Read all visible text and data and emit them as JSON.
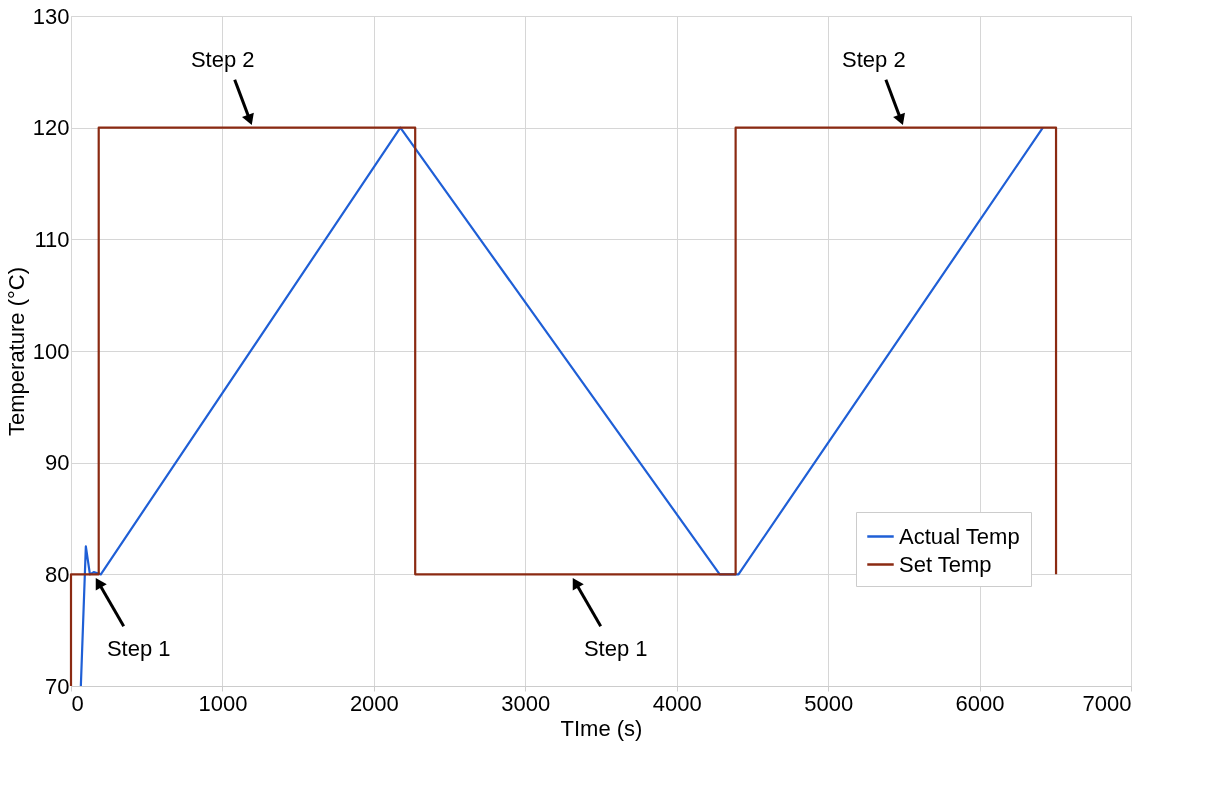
{
  "chart_data": {
    "type": "line",
    "xlabel": "TIme (s)",
    "ylabel": "Temperature (°C)",
    "xlim": [
      0,
      7000
    ],
    "xticks": [
      0,
      1000,
      2000,
      3000,
      4000,
      5000,
      6000,
      7000
    ],
    "ylim": [
      70,
      130
    ],
    "yticks": [
      70,
      80,
      90,
      100,
      110,
      120,
      130
    ],
    "grid": true,
    "legend": "bottom right",
    "marker": "none",
    "line_style": "solid",
    "series": [
      {
        "name": "Actual Temp",
        "color": "#1f5fd6",
        "x": [
          65,
          98,
          125,
          150,
          197,
          2175,
          4284,
          4408,
          6418
        ],
        "values": [
          70,
          82.5,
          80,
          80.2,
          80,
          120,
          80,
          80,
          120
        ]
      },
      {
        "name": "Set Temp",
        "color": "#8b2a12",
        "x": [
          0,
          0,
          183,
          183,
          2273,
          2273,
          4389,
          4389,
          6505,
          6505
        ],
        "values": [
          70,
          80,
          80,
          120,
          120,
          80,
          80,
          120,
          120,
          80
        ]
      }
    ],
    "annotations": [
      {
        "text": "Step 2",
        "x": 1200,
        "y": 120
      },
      {
        "text": "Step 1",
        "x": 150,
        "y": 80
      },
      {
        "text": "Step 1",
        "x": 3300,
        "y": 80
      },
      {
        "text": "Step 2",
        "x": 5500,
        "y": 120
      }
    ]
  }
}
